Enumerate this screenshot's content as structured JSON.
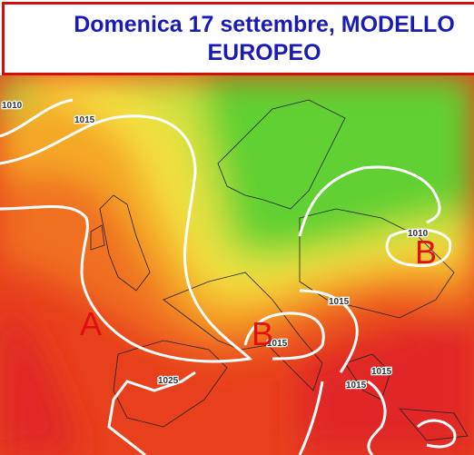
{
  "header": {
    "title": "Domenica 17 settembre, MODELLO EUROPEO"
  },
  "map": {
    "isobar_labels": [
      "1010",
      "1015",
      "1010",
      "1015",
      "1015",
      "1025",
      "1015",
      "1015"
    ],
    "pressure_centers": [
      "A",
      "B",
      "B"
    ]
  }
}
